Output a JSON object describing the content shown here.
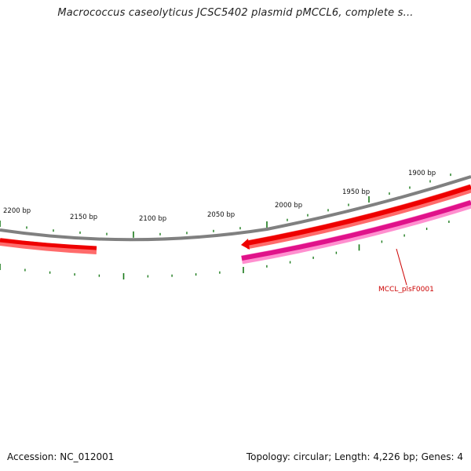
{
  "title": "Macrococcus caseolyticus JCSC5402 plasmid pMCCL6, complete s...",
  "ruler": {
    "labels": [
      "2200 bp",
      "2150 bp",
      "2100 bp",
      "2050 bp",
      "2000 bp",
      "1950 bp",
      "1900 bp"
    ]
  },
  "genes": [
    {
      "label": "MCCL_plsF0001"
    }
  ],
  "colors": {
    "backbone": "#808080",
    "gene_forward": "#ee0000",
    "gene_reverse": "#e0128a",
    "ticks": "#1a7a1a",
    "gene_label": "#cc0000"
  },
  "footer": {
    "accession": "Accession: NC_012001",
    "summary": "Topology: circular; Length: 4,226 bp; Genes: 4"
  }
}
